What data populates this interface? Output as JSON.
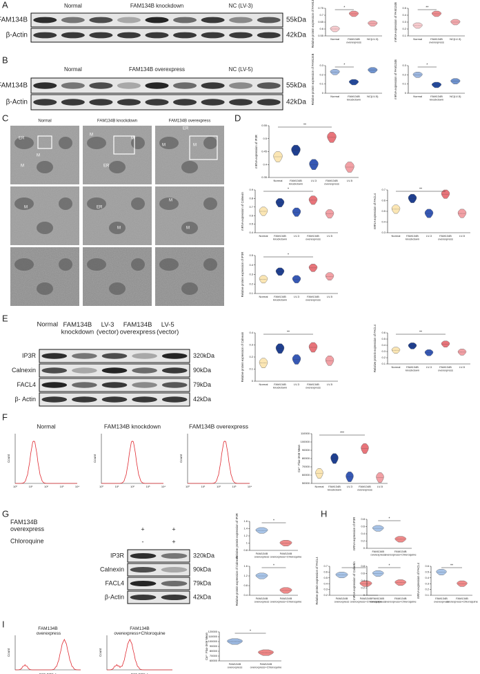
{
  "panel_labels": [
    "A",
    "B",
    "C",
    "D",
    "E",
    "F",
    "G",
    "H",
    "I"
  ],
  "blots": {
    "A": {
      "headers": [
        "Normal",
        "FAM134B knockdown",
        "NC (LV-3)"
      ],
      "rows": [
        {
          "name": "FAM134B",
          "kda": "55kDa"
        },
        {
          "name": "β-Actin",
          "kda": "42kDa"
        }
      ]
    },
    "B": {
      "headers": [
        "Normal",
        "FAM134B overexpress",
        "NC (LV-5)"
      ],
      "rows": [
        {
          "name": "FAM134B",
          "kda": "55kDa"
        },
        {
          "name": "β-Actin",
          "kda": "42kDa"
        }
      ]
    },
    "E": {
      "headers": [
        "Normal",
        "FAM134B knockdown",
        "LV-3 (vector)",
        "FAM134B overexpress",
        "LV-5 (vector)"
      ],
      "rows": [
        {
          "name": "IP3R",
          "kda": "320kDa"
        },
        {
          "name": "Calnexin",
          "kda": "90kDa"
        },
        {
          "name": "FACL4",
          "kda": "79kDa"
        },
        {
          "name": "β- Actin",
          "kda": "42kDa"
        }
      ]
    },
    "G": {
      "treatments": [
        {
          "name": "FAM134B overexpress",
          "signs": [
            "+",
            "+"
          ]
        },
        {
          "name": "Chloroquine",
          "signs": [
            "-",
            "+"
          ]
        }
      ],
      "rows": [
        {
          "name": "IP3R",
          "kda": "320kDa"
        },
        {
          "name": "Calnexin",
          "kda": "90kDa"
        },
        {
          "name": "FACL4",
          "kda": "79kDa"
        },
        {
          "name": "β-Actin",
          "kda": "42kDa"
        }
      ]
    }
  },
  "em": {
    "headers": [
      "Normal",
      "FAM134B knockdown",
      "FAM134B overexpress"
    ],
    "labels": [
      "ER",
      "M",
      "M",
      "M",
      "ER",
      "M",
      "M",
      "ER",
      "M",
      "M",
      "ER",
      "M",
      "M",
      "M"
    ]
  },
  "flow": {
    "F": {
      "titles": [
        "Normal",
        "FAM134B knockdown",
        "FAM134B overexpress"
      ],
      "ylabel": "Count",
      "xticks": [
        "10⁰",
        "10¹",
        "10²",
        "10³",
        "10⁴"
      ]
    },
    "I": {
      "titles": [
        "FAM134B  overexpress",
        "FAM134B overexpress+Chloroquine"
      ],
      "ylabel": "Count",
      "xlabel": "DCF-FITC-A"
    }
  },
  "charts": {
    "A1": {
      "ylabel": "Relative protein expression of FAM134B",
      "categories": [
        "Normal",
        "FAM134B overexpress",
        "NC(LV-3)"
      ],
      "values": [
        0.6,
        0.71,
        0.64
      ],
      "colors": [
        "#f9cdd0",
        "#ee8c8f",
        "#f3a9ad"
      ],
      "ylim": [
        0.55,
        0.75
      ],
      "yticks": [
        0.55,
        0.6,
        0.65,
        0.7,
        0.75
      ],
      "sig": "*"
    },
    "A2": {
      "ylabel": "mRNA expression of FAM134B",
      "categories": [
        "Normal",
        "FAM134B overexpress",
        "NC(LV-3)"
      ],
      "values": [
        0.25,
        0.42,
        0.3
      ],
      "colors": [
        "#f9cdd0",
        "#ee8c8f",
        "#f3a9ad"
      ],
      "ylim": [
        0.1,
        0.5
      ],
      "yticks": [
        0.1,
        0.2,
        0.3,
        0.4,
        0.5
      ],
      "sig": "**"
    },
    "B1": {
      "ylabel": "Relative protein expression of FAM134B",
      "categories": [
        "Normal",
        "FAM134B knockdown",
        "NC(LV-5)"
      ],
      "values": [
        0.23,
        0.12,
        0.25
      ],
      "colors": [
        "#9db7e0",
        "#244a9c",
        "#6f93cf"
      ],
      "ylim": [
        0,
        0.3
      ],
      "yticks": [
        0,
        0.1,
        0.2,
        0.3
      ],
      "sig": "*"
    },
    "B2": {
      "ylabel": "mRNA expression of FAM134B",
      "categories": [
        "Normal",
        "FAM134B knockdown",
        "NC(LV-5)"
      ],
      "values": [
        0.2,
        0.09,
        0.13
      ],
      "colors": [
        "#9db7e0",
        "#244a9c",
        "#6f93cf"
      ],
      "ylim": [
        0,
        0.3
      ],
      "yticks": [
        0,
        0.1,
        0.2,
        0.3
      ],
      "sig": "*"
    },
    "D1": {
      "ylabel": "mRNA expression of IP3R",
      "categories": [
        "Normal",
        "FAM134B knockdown",
        "LV-3",
        "FAM134B overexpress",
        "LV-5"
      ],
      "values": [
        0.43,
        0.455,
        0.4,
        0.505,
        0.39
      ],
      "colors": [
        "#fbe6b4",
        "#1f3f8f",
        "#3658b4",
        "#e8747a",
        "#f2a0a5"
      ],
      "ylim": [
        0.35,
        0.55
      ],
      "yticks": [
        0.35,
        0.4,
        0.45,
        0.5,
        0.55
      ],
      "sig": "**"
    },
    "D2": {
      "ylabel": "mRNA expression of Calnexin",
      "categories": [
        "Normal",
        "FAM134B knockdown",
        "LV-3",
        "FAM134B overexpress",
        "LV-5"
      ],
      "values": [
        0.65,
        0.75,
        0.64,
        0.78,
        0.62
      ],
      "colors": [
        "#fbe6b4",
        "#1f3f8f",
        "#3658b4",
        "#e8747a",
        "#f2a0a5"
      ],
      "ylim": [
        0.4,
        0.9
      ],
      "yticks": [
        0.4,
        0.5,
        0.6,
        0.7,
        0.8,
        0.9
      ],
      "sig": "*"
    },
    "D3": {
      "ylabel": "mRNA expression of FACL4",
      "categories": [
        "Normal",
        "FAM134B knockdown",
        "LV-3",
        "FAM134B overexpress",
        "LV-5"
      ],
      "values": [
        0.52,
        0.62,
        0.48,
        0.66,
        0.48
      ],
      "colors": [
        "#fbe6b4",
        "#1f3f8f",
        "#3658b4",
        "#e8747a",
        "#f2a0a5"
      ],
      "ylim": [
        0.3,
        0.7
      ],
      "yticks": [
        0.3,
        0.4,
        0.5,
        0.6,
        0.7
      ],
      "sig": "**"
    },
    "D4": {
      "ylabel": "Relative protein expression of IP3R",
      "categories": [
        "Normal",
        "FAM134B knockdown",
        "LV-3",
        "FAM134B overexpress",
        "LV-5"
      ],
      "values": [
        0.25,
        0.33,
        0.25,
        0.37,
        0.28
      ],
      "colors": [
        "#fbe6b4",
        "#1f3f8f",
        "#3658b4",
        "#e8747a",
        "#f2a0a5"
      ],
      "ylim": [
        0.1,
        0.5
      ],
      "yticks": [
        0.1,
        0.2,
        0.3,
        0.4,
        0.5
      ],
      "sig": "*"
    },
    "E1": {
      "ylabel": "Relative protein expression of Calnexin",
      "categories": [
        "Normal",
        "FAM134B knockdown",
        "LV-3",
        "FAM134B overexpress",
        "LV-5"
      ],
      "values": [
        0.15,
        0.27,
        0.18,
        0.28,
        0.17
      ],
      "colors": [
        "#fbe6b4",
        "#1f3f8f",
        "#3658b4",
        "#e8747a",
        "#f2a0a5"
      ],
      "ylim": [
        0,
        0.4
      ],
      "yticks": [
        0,
        0.1,
        0.2,
        0.3,
        0.4
      ],
      "sig": "**"
    },
    "E2": {
      "ylabel": "Relative protein expression of FACL4",
      "categories": [
        "Normal",
        "FAM134B knockdown",
        "LV-3",
        "FAM134B overexpress",
        "LV-5"
      ],
      "values": [
        0.32,
        0.39,
        0.28,
        0.42,
        0.29
      ],
      "colors": [
        "#fbe6b4",
        "#1f3f8f",
        "#3658b4",
        "#e8747a",
        "#f2a0a5"
      ],
      "ylim": [
        0.1,
        0.6
      ],
      "yticks": [
        0.1,
        0.2,
        0.3,
        0.4,
        0.5,
        0.6
      ],
      "sig": "**"
    },
    "F1": {
      "ylabel": "Ca²⁺ Fluo-3AM Mean",
      "categories": [
        "Normal",
        "FAM134B knockdown",
        "LV-3",
        "FAM134B overexpress",
        "LV-5"
      ],
      "values": [
        62000,
        80000,
        58000,
        92000,
        57000
      ],
      "colors": [
        "#fbe6b4",
        "#1f3f8f",
        "#3658b4",
        "#e8747a",
        "#f2a0a5"
      ],
      "ylim": [
        50000,
        110000
      ],
      "yticks": [
        50000,
        60000,
        70000,
        80000,
        90000,
        100000,
        110000
      ],
      "sig": "***"
    },
    "G1": {
      "ylabel": "Relative protein expression of IP3R",
      "categories": [
        "FAM134B overexpress",
        "FAM134B overexpress+Chloroquine"
      ],
      "values": [
        1.35,
        1.0
      ],
      "colors": [
        "#a8c4e8",
        "#f08a8a"
      ],
      "ylim": [
        0.8,
        1.6
      ],
      "yticks": [
        0.8,
        1.0,
        1.2,
        1.4,
        1.6
      ],
      "sig": "*"
    },
    "G2": {
      "ylabel": "Relative protein expression of Calnexin",
      "categories": [
        "FAM134B overexpress",
        "FAM134B overexpress+Chloroquine"
      ],
      "values": [
        1.2,
        0.6
      ],
      "colors": [
        "#a8c4e8",
        "#f08a8a"
      ],
      "ylim": [
        0.4,
        1.6
      ],
      "yticks": [
        0.4,
        0.8,
        1.2,
        1.6
      ],
      "sig": "*"
    },
    "G3": {
      "ylabel": "Relative protein expression of FACL4",
      "categories": [
        "FAM134B overexpress",
        "FAM134B overexpress+Chloroquine"
      ],
      "values": [
        0.55,
        0.4
      ],
      "colors": [
        "#a8c4e8",
        "#f08a8a"
      ],
      "ylim": [
        0.2,
        0.7
      ],
      "yticks": [
        0.2,
        0.3,
        0.4,
        0.5,
        0.6,
        0.7
      ],
      "sig": "*"
    },
    "H1": {
      "ylabel": "mRNA expression of IP3R",
      "categories": [
        "FAM134B overexpress",
        "FAM134B overexpress+Chloroquine"
      ],
      "values": [
        0.55,
        0.25
      ],
      "colors": [
        "#a8c4e8",
        "#f08a8a"
      ],
      "ylim": [
        0,
        0.8
      ],
      "yticks": [
        0,
        0.2,
        0.4,
        0.6,
        0.8
      ],
      "sig": "*"
    },
    "H2": {
      "ylabel": "mRNA expression of Calnexin",
      "categories": [
        "FAM134B overexpress",
        "FAM134B overexpress+Chloroquine"
      ],
      "values": [
        0.6,
        0.35
      ],
      "colors": [
        "#a8c4e8",
        "#f08a8a"
      ],
      "ylim": [
        0,
        0.8
      ],
      "yticks": [
        0,
        0.2,
        0.4,
        0.6,
        0.8
      ],
      "sig": "*"
    },
    "H3": {
      "ylabel": "mRNA expression of FACL4",
      "categories": [
        "FAM134B overexpress",
        "FAM134B overexpress+Chloroquine"
      ],
      "values": [
        0.5,
        0.3
      ],
      "colors": [
        "#a8c4e8",
        "#f08a8a"
      ],
      "ylim": [
        0.1,
        0.6
      ],
      "yticks": [
        0.1,
        0.2,
        0.3,
        0.4,
        0.5,
        0.6
      ],
      "sig": "**"
    },
    "I1": {
      "ylabel": "Ca²⁺ Fluo-3AM Mean",
      "categories": [
        "FAM134B overexpress",
        "FAM134B overexpress+Chloroquine"
      ],
      "values": [
        100000,
        77000
      ],
      "colors": [
        "#9bb8e0",
        "#ee8686"
      ],
      "ylim": [
        60000,
        120000
      ],
      "yticks": [
        60000,
        70000,
        80000,
        90000,
        100000,
        110000,
        120000
      ],
      "sig": "*"
    }
  }
}
